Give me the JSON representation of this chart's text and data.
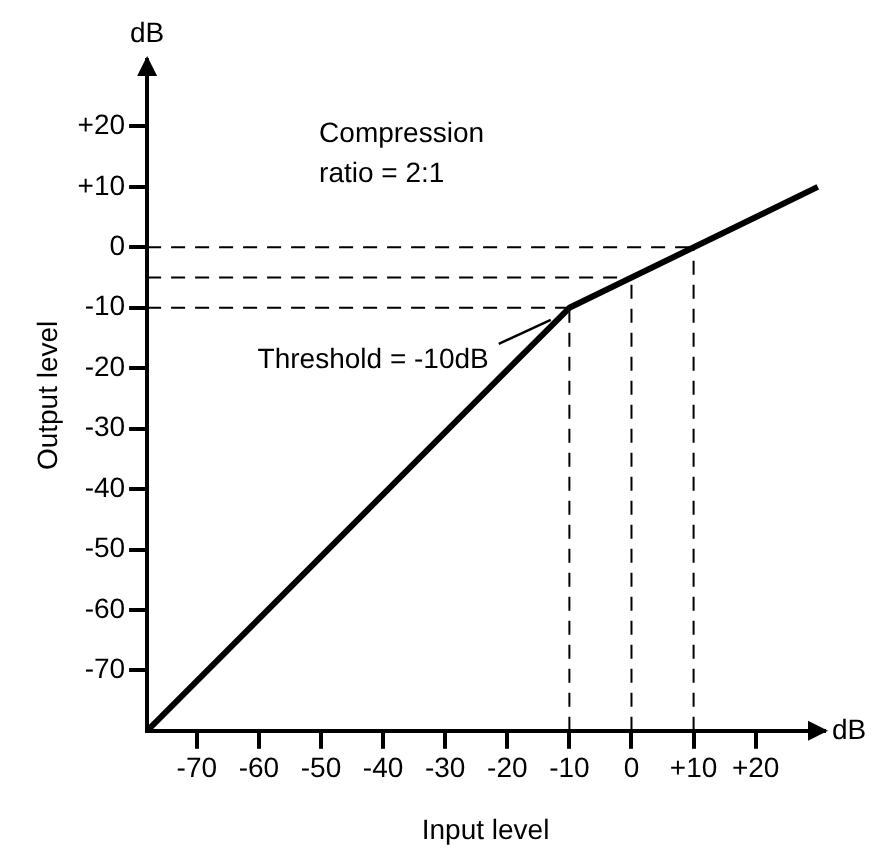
{
  "chart_data": {
    "type": "line",
    "xlabel": "Input level",
    "ylabel": "Output level",
    "x": [
      -78,
      -10,
      30
    ],
    "series": [
      {
        "color": "#000000",
        "values": [
          -80,
          -10,
          10
        ]
      }
    ],
    "xlim": [
      -78,
      31
    ],
    "ylim": [
      -80,
      31
    ],
    "xticks": [
      -70,
      -60,
      -50,
      -40,
      -30,
      -20,
      -10,
      0,
      {
        "value": 10,
        "label": "+10"
      },
      {
        "value": 20,
        "label": "+20"
      }
    ],
    "yticks": [
      -70,
      -60,
      -50,
      -40,
      -30,
      -20,
      -10,
      0,
      {
        "value": 10,
        "label": "+10"
      },
      {
        "value": 20,
        "label": "+20"
      }
    ],
    "ref_lines": [
      {
        "axis": "y",
        "value": 0,
        "line_style": "dashed"
      },
      {
        "axis": "y",
        "value": -5,
        "line_style": "dashed"
      },
      {
        "axis": "y",
        "value": -10,
        "line_style": "dashed"
      },
      {
        "axis": "x",
        "value": -10,
        "line_style": "dashed"
      },
      {
        "axis": "x",
        "value": 0,
        "line_style": "dashed"
      },
      {
        "axis": "x",
        "value": 10,
        "line_style": "dashed"
      }
    ],
    "annotations": [
      "dB",
      "dB",
      "Compression\nratio = 2:1",
      {
        "text": "Threshold = -10dB",
        "x": -13,
        "y": -12
      }
    ],
    "grid": false,
    "legend": false
  }
}
